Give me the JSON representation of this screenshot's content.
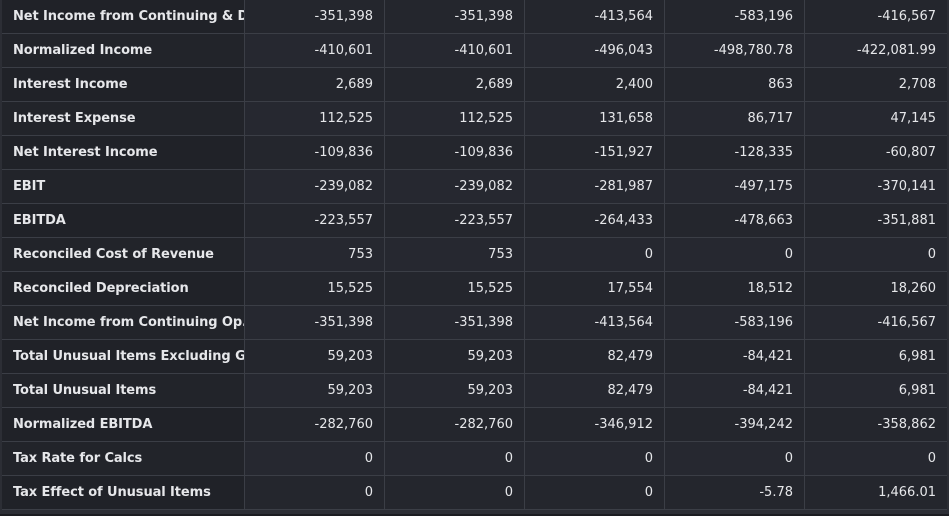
{
  "table": {
    "rows": [
      {
        "label": "Net Income from Continuing & D...",
        "values": [
          "-351,398",
          "-351,398",
          "-413,564",
          "-583,196",
          "-416,567"
        ]
      },
      {
        "label": "Normalized Income",
        "values": [
          "-410,601",
          "-410,601",
          "-496,043",
          "-498,780.78",
          "-422,081.99"
        ]
      },
      {
        "label": "Interest Income",
        "values": [
          "2,689",
          "2,689",
          "2,400",
          "863",
          "2,708"
        ]
      },
      {
        "label": "Interest Expense",
        "values": [
          "112,525",
          "112,525",
          "131,658",
          "86,717",
          "47,145"
        ]
      },
      {
        "label": "Net Interest Income",
        "values": [
          "-109,836",
          "-109,836",
          "-151,927",
          "-128,335",
          "-60,807"
        ]
      },
      {
        "label": "EBIT",
        "values": [
          "-239,082",
          "-239,082",
          "-281,987",
          "-497,175",
          "-370,141"
        ]
      },
      {
        "label": "EBITDA",
        "values": [
          "-223,557",
          "-223,557",
          "-264,433",
          "-478,663",
          "-351,881"
        ]
      },
      {
        "label": "Reconciled Cost of Revenue",
        "values": [
          "753",
          "753",
          "0",
          "0",
          "0"
        ]
      },
      {
        "label": "Reconciled Depreciation",
        "values": [
          "15,525",
          "15,525",
          "17,554",
          "18,512",
          "18,260"
        ]
      },
      {
        "label": "Net Income from Continuing Op...",
        "values": [
          "-351,398",
          "-351,398",
          "-413,564",
          "-583,196",
          "-416,567"
        ]
      },
      {
        "label": "Total Unusual Items Excluding G...",
        "values": [
          "59,203",
          "59,203",
          "82,479",
          "-84,421",
          "6,981"
        ]
      },
      {
        "label": "Total Unusual Items",
        "values": [
          "59,203",
          "59,203",
          "82,479",
          "-84,421",
          "6,981"
        ]
      },
      {
        "label": "Normalized EBITDA",
        "values": [
          "-282,760",
          "-282,760",
          "-346,912",
          "-394,242",
          "-358,862"
        ]
      },
      {
        "label": "Tax Rate for Calcs",
        "values": [
          "0",
          "0",
          "0",
          "0",
          "0"
        ]
      },
      {
        "label": "Tax Effect of Unusual Items",
        "values": [
          "0",
          "0",
          "0",
          "-5.78",
          "1,466.01"
        ]
      }
    ]
  }
}
